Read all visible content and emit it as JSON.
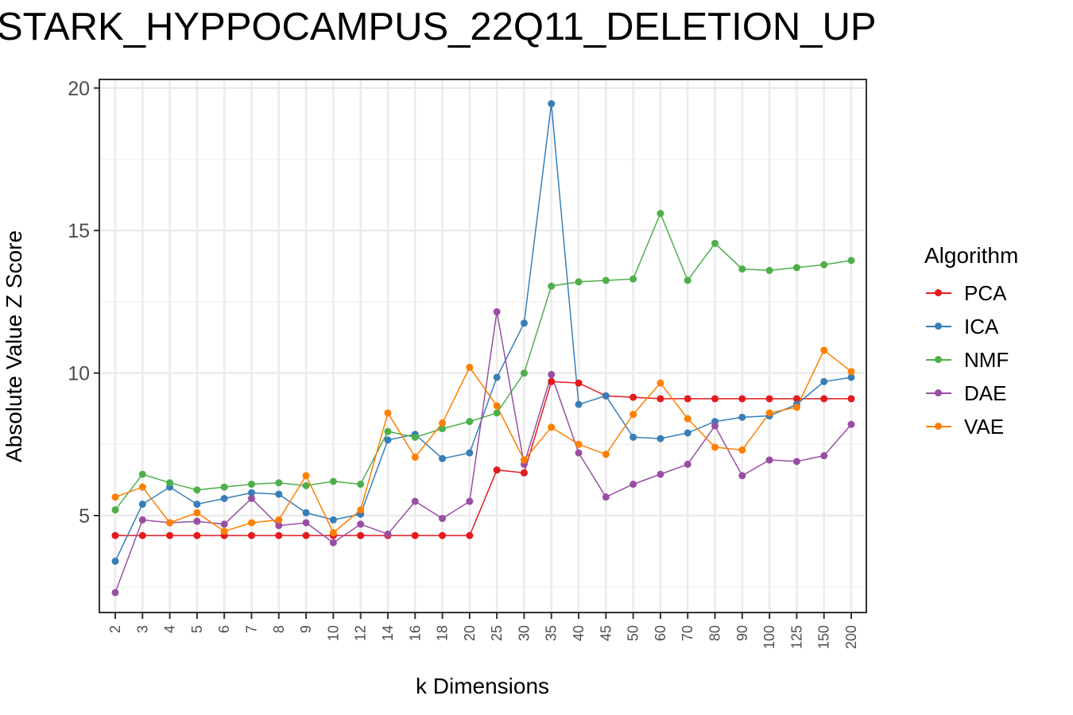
{
  "chart_data": {
    "type": "line",
    "title": "STARK_HYPPOCAMPUS_22Q11_DELETION_UP",
    "xlabel": "k Dimensions",
    "ylabel": "Absolute Value Z Score",
    "categories": [
      "2",
      "3",
      "4",
      "5",
      "6",
      "7",
      "8",
      "9",
      "10",
      "12",
      "14",
      "16",
      "18",
      "20",
      "25",
      "30",
      "35",
      "40",
      "45",
      "50",
      "60",
      "70",
      "80",
      "90",
      "100",
      "125",
      "150",
      "200"
    ],
    "yticks": [
      5,
      10,
      15,
      20
    ],
    "ylim": [
      1.6,
      20.3
    ],
    "grid": true,
    "legend": {
      "title": "Algorithm",
      "position": "right"
    },
    "series": [
      {
        "name": "PCA",
        "color": "#e41a1c",
        "values": [
          4.3,
          4.3,
          4.3,
          4.3,
          4.3,
          4.3,
          4.3,
          4.3,
          4.3,
          4.3,
          4.3,
          4.3,
          4.3,
          4.3,
          6.6,
          6.5,
          9.7,
          9.65,
          9.2,
          9.15,
          9.1,
          9.1,
          9.1,
          9.1,
          9.1,
          9.1,
          9.1,
          9.1
        ]
      },
      {
        "name": "ICA",
        "color": "#377eb8",
        "values": [
          3.4,
          5.4,
          6.0,
          5.4,
          5.6,
          5.8,
          5.75,
          5.1,
          4.85,
          5.05,
          7.65,
          7.85,
          7.0,
          7.2,
          9.85,
          11.75,
          19.45,
          8.9,
          9.2,
          7.75,
          7.7,
          7.9,
          8.3,
          8.45,
          8.5,
          8.9,
          9.7,
          9.85
        ]
      },
      {
        "name": "NMF",
        "color": "#4daf4a",
        "values": [
          5.2,
          6.45,
          6.15,
          5.9,
          6.0,
          6.1,
          6.15,
          6.05,
          6.2,
          6.1,
          7.95,
          7.75,
          8.05,
          8.3,
          8.6,
          10.0,
          13.05,
          13.2,
          13.25,
          13.3,
          15.6,
          13.25,
          14.55,
          13.65,
          13.6,
          13.7,
          13.8,
          13.95
        ]
      },
      {
        "name": "DAE",
        "color": "#984ea3",
        "values": [
          2.3,
          4.85,
          4.75,
          4.8,
          4.7,
          5.6,
          4.65,
          4.75,
          4.05,
          4.7,
          4.35,
          5.5,
          4.9,
          5.5,
          12.15,
          6.8,
          9.95,
          7.2,
          5.65,
          6.1,
          6.45,
          6.8,
          8.15,
          6.4,
          6.95,
          6.9,
          7.1,
          8.2
        ]
      },
      {
        "name": "VAE",
        "color": "#ff7f00",
        "values": [
          5.65,
          6.0,
          4.75,
          5.1,
          4.45,
          4.75,
          4.85,
          6.4,
          4.4,
          5.2,
          8.6,
          7.05,
          8.25,
          10.2,
          8.85,
          6.95,
          8.1,
          7.5,
          7.15,
          8.55,
          9.65,
          8.4,
          7.4,
          7.3,
          8.6,
          8.8,
          10.8,
          10.05
        ]
      }
    ]
  }
}
